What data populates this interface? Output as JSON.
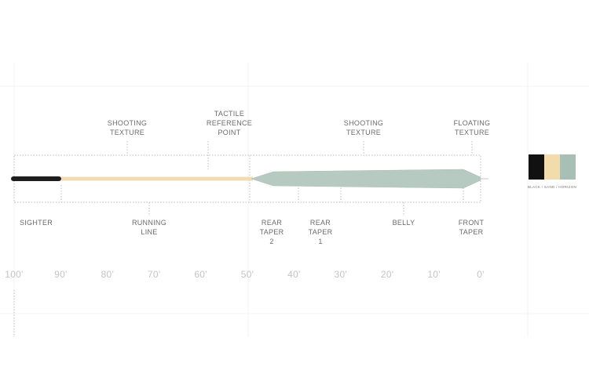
{
  "labels_above": [
    {
      "lines": [
        "SHOOTING",
        "TEXTURE"
      ]
    },
    {
      "lines": [
        "TACTILE",
        "REFERENCE",
        "POINT"
      ]
    },
    {
      "lines": [
        "SHOOTING",
        "TEXTURE"
      ]
    },
    {
      "lines": [
        "FLOATING",
        "TEXTURE"
      ]
    }
  ],
  "labels_below": [
    {
      "lines": [
        "SIGHTER"
      ]
    },
    {
      "lines": [
        "RUNNING",
        "LINE"
      ]
    },
    {
      "lines": [
        "REAR",
        "TAPER",
        "2"
      ]
    },
    {
      "lines": [
        "REAR",
        "TAPER",
        "1"
      ]
    },
    {
      "lines": [
        "BELLY"
      ]
    },
    {
      "lines": [
        "FRONT",
        "TAPER"
      ]
    }
  ],
  "scale": [
    "100'",
    "90'",
    "80'",
    "70'",
    "60'",
    "50'",
    "40'",
    "30'",
    "20'",
    "10'",
    "0'"
  ],
  "swatch_caption": "BLACK / SAND / HORIZON"
}
